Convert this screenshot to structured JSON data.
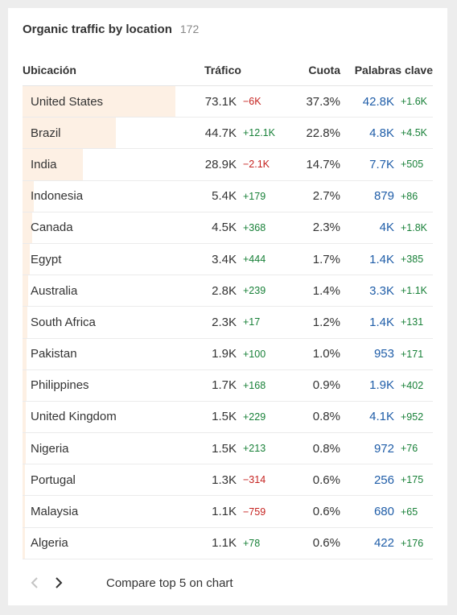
{
  "card": {
    "title": "Organic traffic by location",
    "count": "172"
  },
  "columns": {
    "location": "Ubicación",
    "traffic": "Tráfico",
    "share": "Cuota",
    "keywords": "Palabras clave"
  },
  "colors": {
    "bar": "#fdf0e4",
    "positive": "#188038",
    "negative": "#c5221f",
    "keywords": "#1f5da8"
  },
  "rows": [
    {
      "location": "United States",
      "traffic": "73.1K",
      "traffic_diff": "−6K",
      "traffic_trend": "neg",
      "share": "37.3%",
      "share_value": 37.3,
      "keywords": "42.8K",
      "keywords_diff": "+1.6K"
    },
    {
      "location": "Brazil",
      "traffic": "44.7K",
      "traffic_diff": "+12.1K",
      "traffic_trend": "pos",
      "share": "22.8%",
      "share_value": 22.8,
      "keywords": "4.8K",
      "keywords_diff": "+4.5K"
    },
    {
      "location": "India",
      "traffic": "28.9K",
      "traffic_diff": "−2.1K",
      "traffic_trend": "neg",
      "share": "14.7%",
      "share_value": 14.7,
      "keywords": "7.7K",
      "keywords_diff": "+505"
    },
    {
      "location": "Indonesia",
      "traffic": "5.4K",
      "traffic_diff": "+179",
      "traffic_trend": "pos",
      "share": "2.7%",
      "share_value": 2.7,
      "keywords": "879",
      "keywords_diff": "+86"
    },
    {
      "location": "Canada",
      "traffic": "4.5K",
      "traffic_diff": "+368",
      "traffic_trend": "pos",
      "share": "2.3%",
      "share_value": 2.3,
      "keywords": "4K",
      "keywords_diff": "+1.8K"
    },
    {
      "location": "Egypt",
      "traffic": "3.4K",
      "traffic_diff": "+444",
      "traffic_trend": "pos",
      "share": "1.7%",
      "share_value": 1.7,
      "keywords": "1.4K",
      "keywords_diff": "+385"
    },
    {
      "location": "Australia",
      "traffic": "2.8K",
      "traffic_diff": "+239",
      "traffic_trend": "pos",
      "share": "1.4%",
      "share_value": 1.4,
      "keywords": "3.3K",
      "keywords_diff": "+1.1K"
    },
    {
      "location": "South Africa",
      "traffic": "2.3K",
      "traffic_diff": "+17",
      "traffic_trend": "pos",
      "share": "1.2%",
      "share_value": 1.2,
      "keywords": "1.4K",
      "keywords_diff": "+131"
    },
    {
      "location": "Pakistan",
      "traffic": "1.9K",
      "traffic_diff": "+100",
      "traffic_trend": "pos",
      "share": "1.0%",
      "share_value": 1.0,
      "keywords": "953",
      "keywords_diff": "+171"
    },
    {
      "location": "Philippines",
      "traffic": "1.7K",
      "traffic_diff": "+168",
      "traffic_trend": "pos",
      "share": "0.9%",
      "share_value": 0.9,
      "keywords": "1.9K",
      "keywords_diff": "+402"
    },
    {
      "location": "United Kingdom",
      "traffic": "1.5K",
      "traffic_diff": "+229",
      "traffic_trend": "pos",
      "share": "0.8%",
      "share_value": 0.8,
      "keywords": "4.1K",
      "keywords_diff": "+952"
    },
    {
      "location": "Nigeria",
      "traffic": "1.5K",
      "traffic_diff": "+213",
      "traffic_trend": "pos",
      "share": "0.8%",
      "share_value": 0.8,
      "keywords": "972",
      "keywords_diff": "+76"
    },
    {
      "location": "Portugal",
      "traffic": "1.3K",
      "traffic_diff": "−314",
      "traffic_trend": "neg",
      "share": "0.6%",
      "share_value": 0.6,
      "keywords": "256",
      "keywords_diff": "+175"
    },
    {
      "location": "Malaysia",
      "traffic": "1.1K",
      "traffic_diff": "−759",
      "traffic_trend": "neg",
      "share": "0.6%",
      "share_value": 0.6,
      "keywords": "680",
      "keywords_diff": "+65"
    },
    {
      "location": "Algeria",
      "traffic": "1.1K",
      "traffic_diff": "+78",
      "traffic_trend": "pos",
      "share": "0.6%",
      "share_value": 0.6,
      "keywords": "422",
      "keywords_diff": "+176"
    }
  ],
  "footer": {
    "prev_icon": "chevron-left-icon",
    "next_icon": "chevron-right-icon",
    "compare_label": "Compare top 5 on chart"
  }
}
